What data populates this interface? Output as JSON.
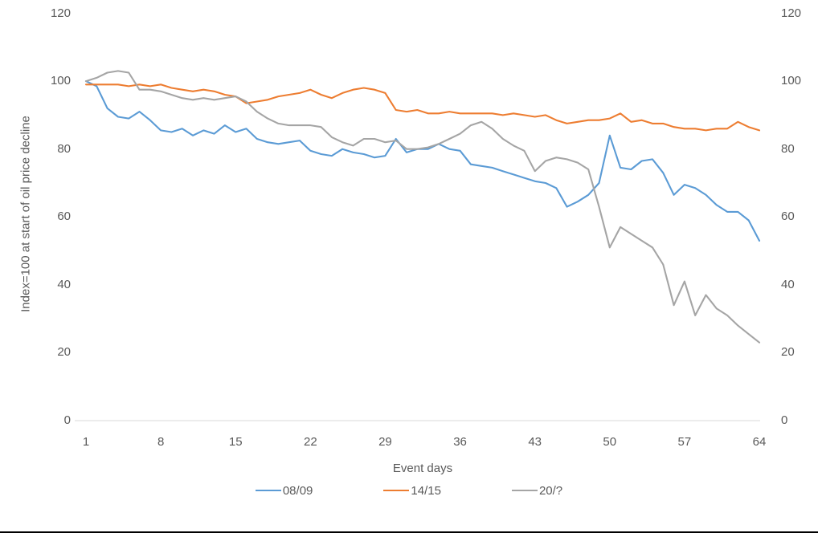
{
  "chart_data": {
    "type": "line",
    "xlabel": "Event days",
    "ylabel": "Index=100 at start of oil price decline",
    "xlim": [
      1,
      64
    ],
    "ylim": [
      0,
      120
    ],
    "xticks": [
      1,
      8,
      15,
      22,
      29,
      36,
      43,
      50,
      57,
      64
    ],
    "yticks": [
      0,
      20,
      40,
      60,
      80,
      100,
      120
    ],
    "grid": false,
    "legend_position": "bottom",
    "axis_line_color": "#d9d9d9",
    "tick_label_color": "#595959",
    "x": [
      1,
      2,
      3,
      4,
      5,
      6,
      7,
      8,
      9,
      10,
      11,
      12,
      13,
      14,
      15,
      16,
      17,
      18,
      19,
      20,
      21,
      22,
      23,
      24,
      25,
      26,
      27,
      28,
      29,
      30,
      31,
      32,
      33,
      34,
      35,
      36,
      37,
      38,
      39,
      40,
      41,
      42,
      43,
      44,
      45,
      46,
      47,
      48,
      49,
      50,
      51,
      52,
      53,
      54,
      55,
      56,
      57,
      58,
      59,
      60,
      61,
      62,
      63,
      64
    ],
    "series": [
      {
        "name": "08/09",
        "color": "#5b9bd5",
        "values": [
          100,
          98.5,
          92,
          89.5,
          89,
          91,
          88.5,
          85.5,
          85,
          86,
          84,
          85.5,
          84.5,
          87,
          85,
          86,
          83,
          82,
          81.5,
          82,
          82.5,
          79.5,
          78.5,
          78,
          80,
          79,
          78.5,
          77.5,
          78,
          83,
          79,
          80,
          80,
          81.5,
          80,
          79.5,
          75.5,
          75,
          74.5,
          73.5,
          72.5,
          71.5,
          70.5,
          70,
          68.5,
          63,
          64.5,
          66.5,
          70,
          84,
          74.5,
          74,
          76.5,
          77,
          73,
          66.5,
          69.5,
          68.5,
          66.5,
          63.5,
          61.5,
          61.5,
          59,
          53
        ]
      },
      {
        "name": "14/15",
        "color": "#ed7d31",
        "values": [
          99,
          99,
          99,
          99,
          98.5,
          99,
          98.5,
          99,
          98,
          97.5,
          97,
          97.5,
          97,
          96,
          95.5,
          93.5,
          94,
          94.5,
          95.5,
          96,
          96.5,
          97.5,
          96,
          95,
          96.5,
          97.5,
          98,
          97.5,
          96.5,
          91.5,
          91,
          91.5,
          90.5,
          90.5,
          91,
          90.5,
          90.5,
          90.5,
          90.5,
          90,
          90.5,
          90,
          89.5,
          90,
          88.5,
          87.5,
          88,
          88.5,
          88.5,
          89,
          90.5,
          88,
          88.5,
          87.5,
          87.5,
          86.5,
          86,
          86,
          85.5,
          86,
          86,
          88,
          86.5,
          85.5
        ]
      },
      {
        "name": "20/?",
        "color": "#a5a5a5",
        "values": [
          100,
          101,
          102.5,
          103,
          102.5,
          97.5,
          97.5,
          97,
          96,
          95,
          94.5,
          95,
          94.5,
          95,
          95.5,
          94,
          91,
          89,
          87.5,
          87,
          87,
          87,
          86.5,
          83.5,
          82,
          81,
          83,
          83,
          82,
          82.5,
          80,
          80,
          80.5,
          81.5,
          83,
          84.5,
          87,
          88,
          86,
          83,
          81,
          79.5,
          73.5,
          76.5,
          77.5,
          77,
          76,
          74,
          63,
          51,
          57,
          55,
          53,
          51,
          46,
          34,
          41,
          31,
          37,
          33,
          31,
          28,
          25.5,
          23
        ]
      }
    ]
  }
}
